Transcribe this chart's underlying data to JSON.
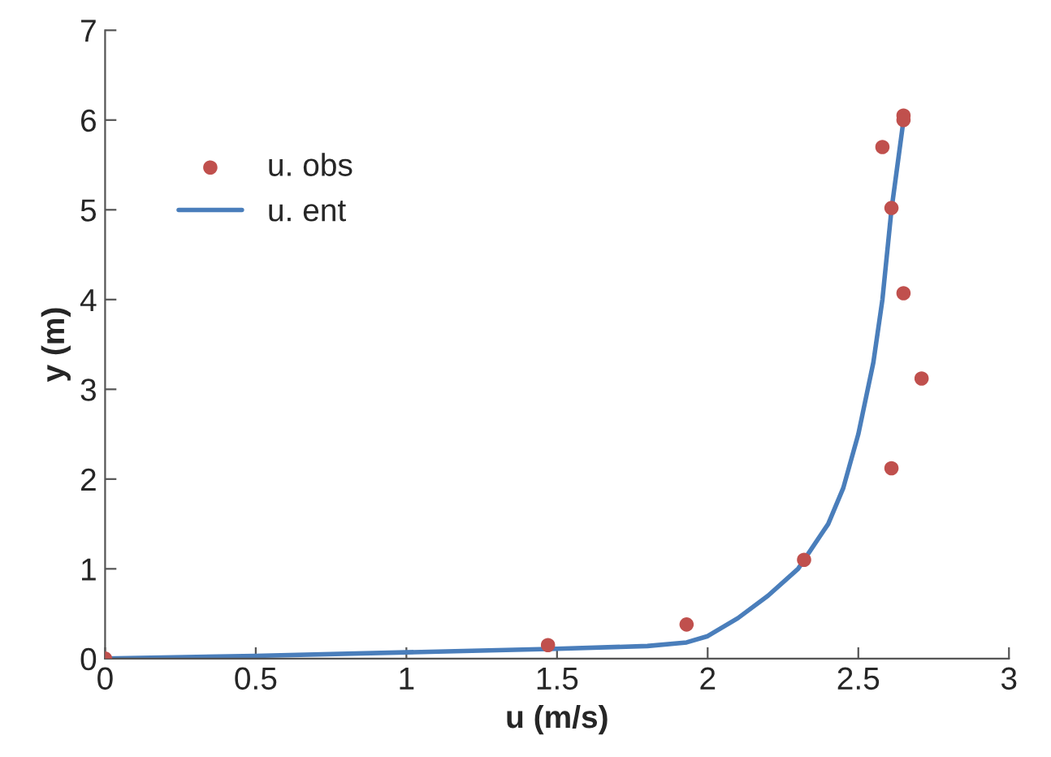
{
  "chart_data": {
    "type": "scatter",
    "xlabel": "u (m/s)",
    "ylabel": "y (m)",
    "xlim": [
      0,
      3
    ],
    "ylim": [
      0,
      7
    ],
    "xticks": [
      0,
      0.5,
      1,
      1.5,
      2,
      2.5,
      3
    ],
    "yticks": [
      0,
      1,
      2,
      3,
      4,
      5,
      6,
      7
    ],
    "grid": false,
    "legend": "top left",
    "series": [
      {
        "name": "u. obs",
        "color": "#c0504d",
        "marker": "circle",
        "x": [
          0,
          1.47,
          1.93,
          2.32,
          2.61,
          2.71,
          2.65,
          2.61,
          2.58,
          2.65,
          2.65
        ],
        "values": [
          0,
          0.15,
          0.38,
          1.1,
          2.12,
          3.12,
          4.07,
          5.02,
          5.7,
          6.05,
          6.0
        ]
      },
      {
        "name": "u. ent",
        "type": "line",
        "color": "#4a7ebb",
        "marker": "none",
        "line_style": "solid",
        "x": [
          0,
          0.5,
          1,
          1.5,
          1.8,
          1.93,
          2.0,
          2.1,
          2.2,
          2.3,
          2.4,
          2.45,
          2.5,
          2.55,
          2.58,
          2.61,
          2.63,
          2.65
        ],
        "values": [
          0,
          0.03,
          0.07,
          0.11,
          0.14,
          0.18,
          0.25,
          0.45,
          0.7,
          1.0,
          1.5,
          1.9,
          2.5,
          3.3,
          4.0,
          5.0,
          5.5,
          6.0
        ]
      }
    ]
  }
}
